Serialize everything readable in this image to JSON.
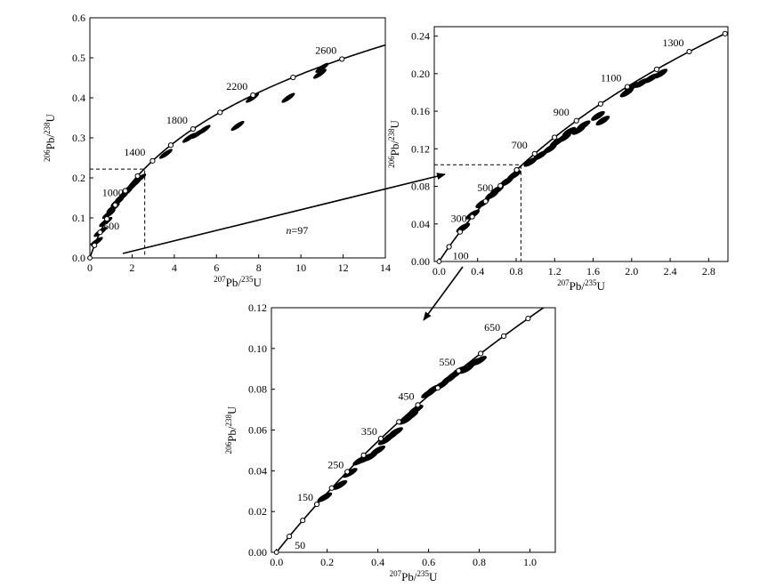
{
  "colors": {
    "ink": "#000000",
    "marker_fill": "#ffffff",
    "background": "#ffffff"
  },
  "chart_data": [
    {
      "type": "scatter",
      "kind": "U-Pb concordia diagram",
      "x_axis_label": {
        "num_iso": "207",
        "num_el": "Pb",
        "den_iso": "235",
        "den_el": "U"
      },
      "y_axis_label": {
        "num_iso": "206",
        "num_el": "Pb",
        "den_iso": "238",
        "den_el": "U"
      },
      "xlim": [
        0,
        14
      ],
      "ylim": [
        0,
        0.6
      ],
      "xticks": [
        0,
        2,
        4,
        6,
        8,
        10,
        12,
        14
      ],
      "yticks": [
        0,
        0.1,
        0.2,
        0.3,
        0.4,
        0.5,
        0.6
      ],
      "xtick_labels": [
        "0",
        "2",
        "4",
        "6",
        "8",
        "10",
        "12",
        "14"
      ],
      "ytick_labels": [
        "0.0",
        "0.1",
        "0.2",
        "0.3",
        "0.4",
        "0.5",
        "0.6"
      ],
      "grid": false,
      "concordia_curve": true,
      "age_markers_ma": [
        200,
        400,
        600,
        800,
        1000,
        1200,
        1400,
        1600,
        1800,
        2000,
        2200,
        2400,
        2600
      ],
      "age_labels": [
        {
          "age": 600,
          "text": "600"
        },
        {
          "age": 1000,
          "text": "1000"
        },
        {
          "age": 1400,
          "text": "1400"
        },
        {
          "age": 1800,
          "text": "1800"
        },
        {
          "age": 2200,
          "text": "2200"
        },
        {
          "age": 2600,
          "text": "2600"
        }
      ],
      "annotation": {
        "italic": "n",
        "rest": "=97"
      },
      "zoom_box": {
        "x": 2.6,
        "y": 0.222
      },
      "error_ellipses": [
        {
          "x": 0.3,
          "y": 0.04
        },
        {
          "x": 0.5,
          "y": 0.065
        },
        {
          "x": 0.75,
          "y": 0.09
        },
        {
          "x": 0.9,
          "y": 0.11
        },
        {
          "x": 1.1,
          "y": 0.125
        },
        {
          "x": 1.3,
          "y": 0.14
        },
        {
          "x": 1.5,
          "y": 0.152
        },
        {
          "x": 1.7,
          "y": 0.163
        },
        {
          "x": 1.9,
          "y": 0.175
        },
        {
          "x": 2.1,
          "y": 0.185
        },
        {
          "x": 2.35,
          "y": 0.198
        },
        {
          "x": 3.6,
          "y": 0.26
        },
        {
          "x": 4.7,
          "y": 0.3
        },
        {
          "x": 5.1,
          "y": 0.31
        },
        {
          "x": 5.4,
          "y": 0.32
        },
        {
          "x": 7.0,
          "y": 0.33
        },
        {
          "x": 7.7,
          "y": 0.4
        },
        {
          "x": 9.4,
          "y": 0.4
        },
        {
          "x": 10.9,
          "y": 0.46
        },
        {
          "x": 11.0,
          "y": 0.475
        }
      ]
    },
    {
      "type": "scatter",
      "kind": "U-Pb concordia diagram",
      "x_axis_label": {
        "num_iso": "207",
        "num_el": "Pb",
        "den_iso": "235",
        "den_el": "U"
      },
      "y_axis_label": {
        "num_iso": "206",
        "num_el": "Pb",
        "den_iso": "238",
        "den_el": "U"
      },
      "xlim": [
        -0.05,
        3.0
      ],
      "ylim": [
        0,
        0.25
      ],
      "xticks": [
        0,
        0.4,
        0.8,
        1.2,
        1.6,
        2.0,
        2.4,
        2.8
      ],
      "yticks": [
        0,
        0.04,
        0.08,
        0.12,
        0.16,
        0.2,
        0.24
      ],
      "xtick_labels": [
        "0.0",
        "0.4",
        "0.8",
        "1.2",
        "1.6",
        "2.0",
        "2.4",
        "2.8"
      ],
      "ytick_labels": [
        "0.00",
        "0.04",
        "0.08",
        "0.12",
        "0.16",
        "0.20",
        "0.24"
      ],
      "grid": false,
      "concordia_curve": true,
      "age_markers_ma": [
        100,
        200,
        300,
        400,
        500,
        600,
        700,
        800,
        900,
        1000,
        1100,
        1200,
        1300,
        1400
      ],
      "age_labels": [
        {
          "age": 100,
          "text": "100"
        },
        {
          "age": 300,
          "text": "300"
        },
        {
          "age": 500,
          "text": "500"
        },
        {
          "age": 700,
          "text": "700"
        },
        {
          "age": 900,
          "text": "900"
        },
        {
          "age": 1100,
          "text": "1100"
        },
        {
          "age": 1300,
          "text": "1300"
        }
      ],
      "zoom_box": {
        "x": 0.85,
        "y": 0.103
      },
      "error_ellipses": [
        {
          "x": 0.25,
          "y": 0.036
        },
        {
          "x": 0.35,
          "y": 0.05
        },
        {
          "x": 0.45,
          "y": 0.062
        },
        {
          "x": 0.55,
          "y": 0.071
        },
        {
          "x": 0.6,
          "y": 0.076
        },
        {
          "x": 0.7,
          "y": 0.085
        },
        {
          "x": 0.78,
          "y": 0.092
        },
        {
          "x": 0.95,
          "y": 0.106
        },
        {
          "x": 1.05,
          "y": 0.113
        },
        {
          "x": 1.15,
          "y": 0.12
        },
        {
          "x": 1.22,
          "y": 0.127
        },
        {
          "x": 1.3,
          "y": 0.132
        },
        {
          "x": 1.35,
          "y": 0.138
        },
        {
          "x": 1.45,
          "y": 0.14
        },
        {
          "x": 1.5,
          "y": 0.145
        },
        {
          "x": 1.65,
          "y": 0.155
        },
        {
          "x": 1.7,
          "y": 0.15
        },
        {
          "x": 1.95,
          "y": 0.18
        },
        {
          "x": 2.0,
          "y": 0.186
        },
        {
          "x": 2.1,
          "y": 0.19
        },
        {
          "x": 2.2,
          "y": 0.195
        },
        {
          "x": 2.3,
          "y": 0.2
        }
      ]
    },
    {
      "type": "scatter",
      "kind": "U-Pb concordia diagram",
      "x_axis_label": {
        "num_iso": "207",
        "num_el": "Pb",
        "den_iso": "235",
        "den_el": "U"
      },
      "y_axis_label": {
        "num_iso": "206",
        "num_el": "Pb",
        "den_iso": "238",
        "den_el": "U"
      },
      "xlim": [
        -0.02,
        1.1
      ],
      "ylim": [
        0,
        0.12
      ],
      "xticks": [
        0,
        0.2,
        0.4,
        0.6,
        0.8,
        1.0
      ],
      "yticks": [
        0,
        0.02,
        0.04,
        0.06,
        0.08,
        0.1,
        0.12
      ],
      "xtick_labels": [
        "0.0",
        "0.2",
        "0.4",
        "0.6",
        "0.8",
        "1.0"
      ],
      "ytick_labels": [
        "0.00",
        "0.02",
        "0.04",
        "0.06",
        "0.08",
        "0.10",
        "0.12"
      ],
      "grid": false,
      "concordia_curve": true,
      "age_markers_ma": [
        50,
        100,
        150,
        200,
        250,
        300,
        350,
        400,
        450,
        500,
        550,
        600,
        650,
        700
      ],
      "age_labels": [
        {
          "age": 50,
          "text": "50"
        },
        {
          "age": 150,
          "text": "150"
        },
        {
          "age": 250,
          "text": "250"
        },
        {
          "age": 350,
          "text": "350"
        },
        {
          "age": 450,
          "text": "450"
        },
        {
          "age": 550,
          "text": "550"
        },
        {
          "age": 650,
          "text": "650"
        }
      ],
      "error_ellipses": [
        {
          "x": 0.19,
          "y": 0.027
        },
        {
          "x": 0.25,
          "y": 0.033
        },
        {
          "x": 0.29,
          "y": 0.039
        },
        {
          "x": 0.33,
          "y": 0.045
        },
        {
          "x": 0.35,
          "y": 0.046
        },
        {
          "x": 0.37,
          "y": 0.047
        },
        {
          "x": 0.4,
          "y": 0.05
        },
        {
          "x": 0.43,
          "y": 0.055
        },
        {
          "x": 0.45,
          "y": 0.057
        },
        {
          "x": 0.47,
          "y": 0.059
        },
        {
          "x": 0.51,
          "y": 0.065
        },
        {
          "x": 0.53,
          "y": 0.067
        },
        {
          "x": 0.55,
          "y": 0.07
        },
        {
          "x": 0.6,
          "y": 0.078
        },
        {
          "x": 0.62,
          "y": 0.08
        },
        {
          "x": 0.65,
          "y": 0.082
        },
        {
          "x": 0.68,
          "y": 0.085
        },
        {
          "x": 0.7,
          "y": 0.087
        },
        {
          "x": 0.72,
          "y": 0.089
        },
        {
          "x": 0.75,
          "y": 0.09
        },
        {
          "x": 0.78,
          "y": 0.093
        },
        {
          "x": 0.8,
          "y": 0.094
        }
      ]
    }
  ]
}
